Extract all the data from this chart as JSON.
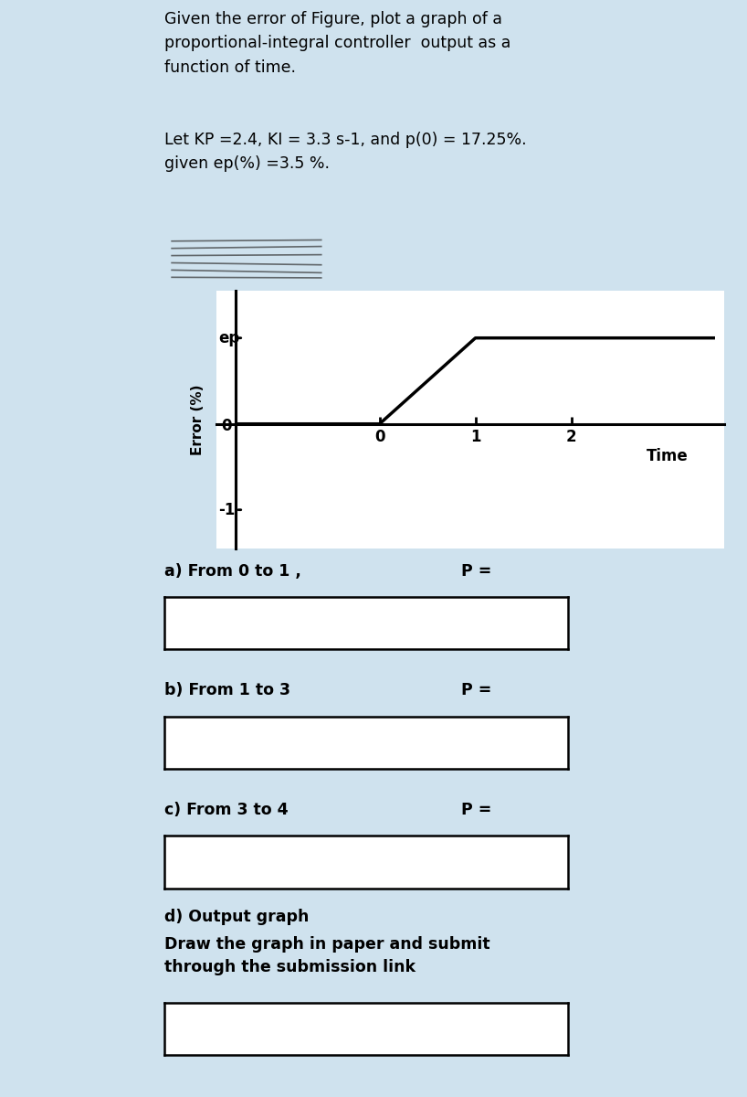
{
  "title_text": "Given the error of Figure, plot a graph of a\nproportional-integral controller  output as a\nfunction of time.",
  "param_text": "Let KP =2.4, KI = 3.3 s-1, and p(0) = 17.25%.\ngiven ep(%) =3.5 %.",
  "graph_xlabel": "Time",
  "graph_ylabel": "Error (%)",
  "ep_label": "ep",
  "neg1_label": "-1",
  "zero_label": "0",
  "xtick_labels": [
    "0",
    "1",
    "2"
  ],
  "signal_x": [
    -1.5,
    0.0,
    0.0,
    1.0,
    3.0,
    3.5
  ],
  "signal_y": [
    0.0,
    0.0,
    0.0,
    1.0,
    1.0,
    1.0
  ],
  "background_color": "#cfe2ee",
  "plot_bg_color": "#ffffff",
  "line_color": "#000000",
  "text_color": "#000000",
  "sidebar_color": "#2b2b2b",
  "section_a_label": "a) From 0 to 1 ,",
  "section_a_p": "P =",
  "section_b_label": "b) From 1 to 3",
  "section_b_p": "P =",
  "section_c_label": "c) From 3 to 4",
  "section_c_p": "P =",
  "section_d_label": "d) Output graph",
  "section_d_sub1": "Draw the graph in paper and submit",
  "section_d_sub2": "through the submission link",
  "box_edge_color": "#000000",
  "bottom_bar_color": "#1a1a1a"
}
